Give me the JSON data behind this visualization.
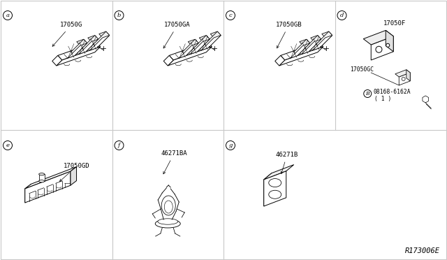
{
  "background_color": "#ffffff",
  "border_color": "#c8c8c8",
  "grid_color": "#c8c8c8",
  "figure_ref": "R173006E",
  "panels": [
    {
      "id": "a",
      "label": "17050G",
      "circle": "a",
      "col": 0,
      "row": 0
    },
    {
      "id": "b",
      "label": "17050GA",
      "circle": "b",
      "col": 1,
      "row": 0
    },
    {
      "id": "c",
      "label": "17050GB",
      "circle": "c",
      "col": 2,
      "row": 0
    },
    {
      "id": "d",
      "labels": [
        "17050F",
        "17050GC",
        "08168-6162A",
        "( 1 )"
      ],
      "circle": "d",
      "col": 3,
      "row": 0
    },
    {
      "id": "e",
      "label": "17050GD",
      "circle": "e",
      "col": 0,
      "row": 1
    },
    {
      "id": "f",
      "label": "46271BA",
      "circle": "f",
      "col": 1,
      "row": 1
    },
    {
      "id": "g",
      "label": "46271B",
      "circle": "g",
      "col": 2,
      "row": 1
    }
  ],
  "lw": 0.7,
  "lw_thin": 0.4,
  "lw_thick": 0.9
}
